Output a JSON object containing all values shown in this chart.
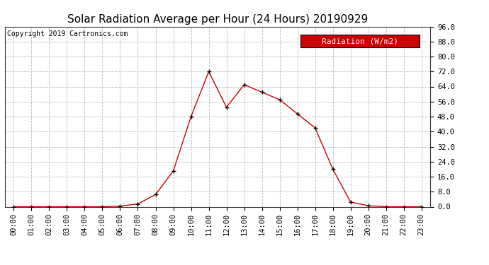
{
  "title": "Solar Radiation Average per Hour (24 Hours) 20190929",
  "copyright": "Copyright 2019 Cartronics.com",
  "legend_label": "Radiation (W/m2)",
  "hours": [
    "00:00",
    "01:00",
    "02:00",
    "03:00",
    "04:00",
    "05:00",
    "06:00",
    "07:00",
    "08:00",
    "09:00",
    "10:00",
    "11:00",
    "12:00",
    "13:00",
    "14:00",
    "15:00",
    "16:00",
    "17:00",
    "18:00",
    "19:00",
    "20:00",
    "21:00",
    "22:00",
    "23:00"
  ],
  "values": [
    0.0,
    0.0,
    0.0,
    0.0,
    0.0,
    0.0,
    0.3,
    1.5,
    6.5,
    19.0,
    48.0,
    72.0,
    53.0,
    65.0,
    61.0,
    57.0,
    49.5,
    42.0,
    20.0,
    2.5,
    0.5,
    0.0,
    0.0,
    0.0
  ],
  "ylim": [
    0,
    96
  ],
  "yticks": [
    0.0,
    8.0,
    16.0,
    24.0,
    32.0,
    40.0,
    48.0,
    56.0,
    64.0,
    72.0,
    80.0,
    88.0,
    96.0
  ],
  "line_color": "#cc0000",
  "marker_color": "#000000",
  "plot_bg_color": "#ffffff",
  "fig_bg_color": "#ffffff",
  "grid_color": "#bbbbbb",
  "title_fontsize": 11,
  "copyright_fontsize": 7,
  "tick_fontsize": 7.5,
  "legend_bg_color": "#cc0000",
  "legend_text_color": "#ffffff",
  "legend_fontsize": 8
}
